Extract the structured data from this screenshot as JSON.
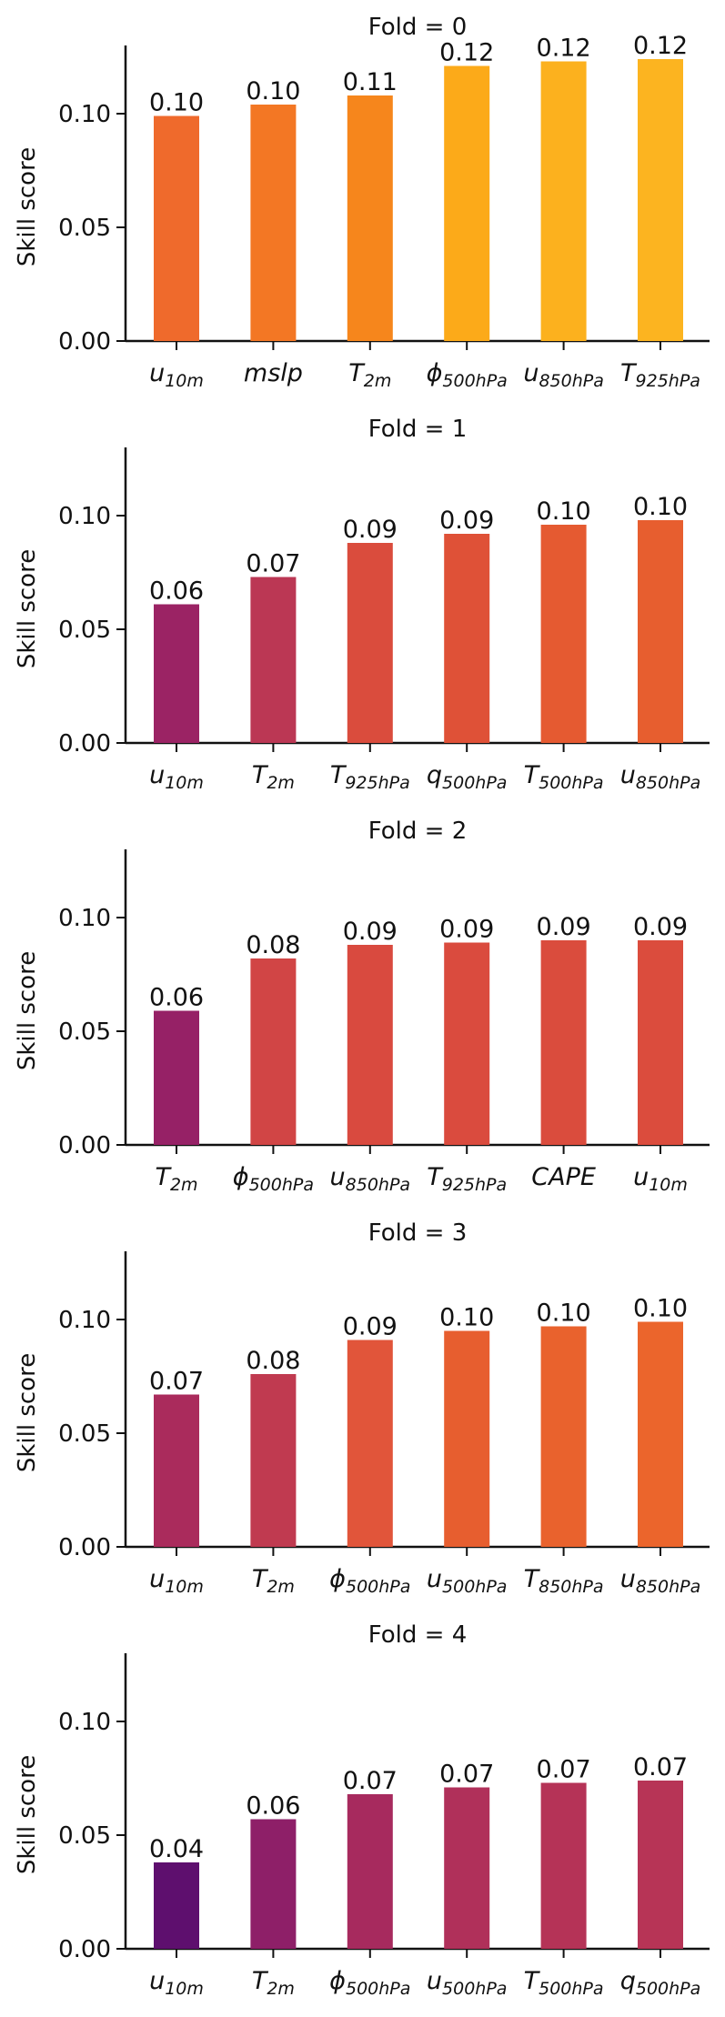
{
  "chart_data": [
    {
      "type": "bar",
      "title": "Fold = 0",
      "ylabel": "Skill score",
      "ylim": [
        0,
        0.13
      ],
      "yticks": [
        "0.00",
        "0.05",
        "0.10"
      ],
      "categories": [
        {
          "main": "u",
          "sub": "10m"
        },
        {
          "main": "mslp",
          "sub": ""
        },
        {
          "main": "T",
          "sub": "2m"
        },
        {
          "main": "ϕ",
          "sub": "500hPa"
        },
        {
          "main": "u",
          "sub": "850hPa"
        },
        {
          "main": "T",
          "sub": "925hPa"
        }
      ],
      "values": [
        0.099,
        0.104,
        0.108,
        0.121,
        0.123,
        0.124
      ],
      "labels": [
        "0.10",
        "0.10",
        "0.11",
        "0.12",
        "0.12",
        "0.12"
      ],
      "colors": [
        "#ef6a2c",
        "#f37724",
        "#f6861c",
        "#fcaa19",
        "#fcb11e",
        "#fcb420"
      ]
    },
    {
      "type": "bar",
      "title": "Fold = 1",
      "ylabel": "Skill score",
      "ylim": [
        0,
        0.13
      ],
      "yticks": [
        "0.00",
        "0.05",
        "0.10"
      ],
      "categories": [
        {
          "main": "u",
          "sub": "10m"
        },
        {
          "main": "T",
          "sub": "2m"
        },
        {
          "main": "T",
          "sub": "925hPa"
        },
        {
          "main": "q",
          "sub": "500hPa"
        },
        {
          "main": "T",
          "sub": "500hPa"
        },
        {
          "main": "u",
          "sub": "850hPa"
        }
      ],
      "values": [
        0.061,
        0.073,
        0.088,
        0.092,
        0.096,
        0.098
      ],
      "labels": [
        "0.06",
        "0.07",
        "0.09",
        "0.09",
        "0.10",
        "0.10"
      ],
      "colors": [
        "#9b2364",
        "#bb3754",
        "#da4c3d",
        "#df5137",
        "#e55a31",
        "#e75e2f"
      ]
    },
    {
      "type": "bar",
      "title": "Fold = 2",
      "ylabel": "Skill score",
      "ylim": [
        0,
        0.13
      ],
      "yticks": [
        "0.00",
        "0.05",
        "0.10"
      ],
      "categories": [
        {
          "main": "T",
          "sub": "2m"
        },
        {
          "main": "ϕ",
          "sub": "500hPa"
        },
        {
          "main": "u",
          "sub": "850hPa"
        },
        {
          "main": "T",
          "sub": "925hPa"
        },
        {
          "main": "CAPE",
          "sub": ""
        },
        {
          "main": "u",
          "sub": "10m"
        }
      ],
      "values": [
        0.059,
        0.082,
        0.088,
        0.089,
        0.09,
        0.09
      ],
      "labels": [
        "0.06",
        "0.08",
        "0.09",
        "0.09",
        "0.09",
        "0.09"
      ],
      "colors": [
        "#962166",
        "#d14545",
        "#d94a3f",
        "#da4b3e",
        "#da4c3d",
        "#db4c3d"
      ]
    },
    {
      "type": "bar",
      "title": "Fold = 3",
      "ylabel": "Skill score",
      "ylim": [
        0,
        0.13
      ],
      "yticks": [
        "0.00",
        "0.05",
        "0.10"
      ],
      "categories": [
        {
          "main": "u",
          "sub": "10m"
        },
        {
          "main": "T",
          "sub": "2m"
        },
        {
          "main": "ϕ",
          "sub": "500hPa"
        },
        {
          "main": "u",
          "sub": "500hPa"
        },
        {
          "main": "T",
          "sub": "850hPa"
        },
        {
          "main": "u",
          "sub": "850hPa"
        }
      ],
      "values": [
        0.067,
        0.076,
        0.091,
        0.095,
        0.097,
        0.099
      ],
      "labels": [
        "0.07",
        "0.08",
        "0.09",
        "0.10",
        "0.10",
        "0.10"
      ],
      "colors": [
        "#aa2b5c",
        "#c03a50",
        "#e1553a",
        "#e75e2f",
        "#e9622d",
        "#eb652c"
      ]
    },
    {
      "type": "bar",
      "title": "Fold = 4",
      "ylabel": "Skill score",
      "ylim": [
        0,
        0.13
      ],
      "yticks": [
        "0.00",
        "0.05",
        "0.10"
      ],
      "categories": [
        {
          "main": "u",
          "sub": "10m"
        },
        {
          "main": "T",
          "sub": "2m"
        },
        {
          "main": "ϕ",
          "sub": "500hPa"
        },
        {
          "main": "u",
          "sub": "500hPa"
        },
        {
          "main": "T",
          "sub": "500hPa"
        },
        {
          "main": "q",
          "sub": "500hPa"
        }
      ],
      "values": [
        0.038,
        0.057,
        0.068,
        0.071,
        0.073,
        0.074
      ],
      "labels": [
        "0.04",
        "0.06",
        "0.07",
        "0.07",
        "0.07",
        "0.07"
      ],
      "colors": [
        "#5e0f6e",
        "#8e1f68",
        "#a72a5e",
        "#b0305a",
        "#b53357",
        "#b73456"
      ]
    }
  ]
}
